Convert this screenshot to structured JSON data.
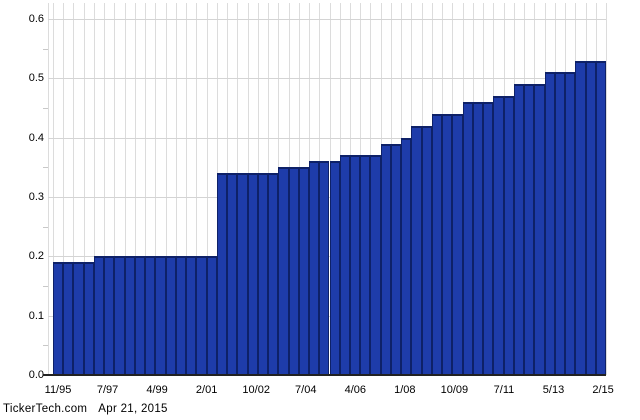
{
  "footer": {
    "brand": "TickerTech.com",
    "date": "Apr 21, 2015"
  },
  "colors": {
    "background": "#ffffff",
    "bar_fill": "#1e3caa",
    "bar_edge": "#0e2168",
    "grid_vertical": "#dcdcdc",
    "grid_horizontal": "#d4d4d4",
    "minor_tick": "#c8c8c8",
    "axis_line": "#222222",
    "text": "#000000"
  },
  "chart_data": {
    "type": "bar",
    "title": "",
    "xlabel": "",
    "ylabel": "",
    "ylim": [
      0,
      0.6
    ],
    "grid": true,
    "legend_position": "none",
    "y_ticks": [
      "0.0",
      "0.1",
      "0.2",
      "0.3",
      "0.4",
      "0.5",
      "0.6"
    ],
    "y_minor_ticks": [
      0.05,
      0.15,
      0.25,
      0.35,
      0.45,
      0.55
    ],
    "x_tick_labels": [
      "11/95",
      "7/97",
      "4/99",
      "2/01",
      "10/02",
      "7/04",
      "4/06",
      "1/08",
      "10/09",
      "7/11",
      "5/13",
      "2/15"
    ],
    "bar_count": 54,
    "steps": [
      {
        "value": 0.19,
        "bars": 4
      },
      {
        "value": 0.2,
        "bars": 12
      },
      {
        "value": 0.34,
        "bars": 6
      },
      {
        "value": 0.35,
        "bars": 3
      },
      {
        "value": 0.36,
        "bars": 3
      },
      {
        "value": 0.37,
        "bars": 4
      },
      {
        "value": 0.39,
        "bars": 2
      },
      {
        "value": 0.4,
        "bars": 1
      },
      {
        "value": 0.42,
        "bars": 2
      },
      {
        "value": 0.44,
        "bars": 3
      },
      {
        "value": 0.46,
        "bars": 3
      },
      {
        "value": 0.47,
        "bars": 2
      },
      {
        "value": 0.49,
        "bars": 3
      },
      {
        "value": 0.51,
        "bars": 3
      },
      {
        "value": 0.53,
        "bars": 3
      }
    ]
  }
}
